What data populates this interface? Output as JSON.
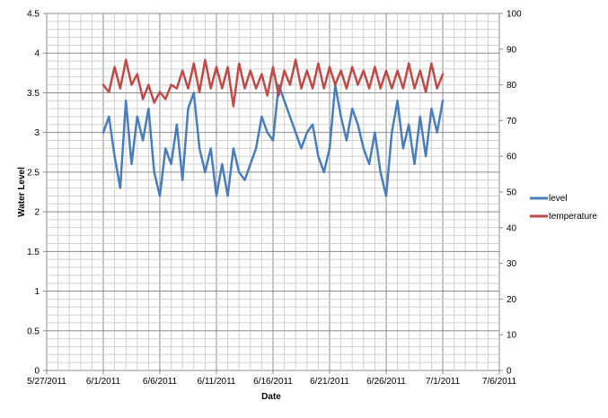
{
  "chart_data": {
    "type": "line",
    "title": "",
    "xlabel": "Date",
    "ylabel": "Water Level",
    "y2label": "",
    "x_range": [
      "5/27/2011",
      "7/6/2011"
    ],
    "x_tick_labels": [
      "5/27/2011",
      "6/1/2011",
      "6/6/2011",
      "6/11/2011",
      "6/16/2011",
      "6/21/2011",
      "6/26/2011",
      "7/1/2011",
      "7/6/2011"
    ],
    "y_range": [
      0,
      4.5
    ],
    "y_tick_labels": [
      "0",
      "0.5",
      "1",
      "1.5",
      "2",
      "2.5",
      "3",
      "3.5",
      "4",
      "4.5"
    ],
    "y2_range": [
      0,
      100
    ],
    "y2_tick_labels": [
      "0",
      "10",
      "20",
      "30",
      "40",
      "50",
      "60",
      "70",
      "80",
      "90",
      "100"
    ],
    "grid": true,
    "legend_position": "right",
    "series": [
      {
        "name": "level",
        "axis": "left",
        "color": "#4a7ebb",
        "x": [
          "6/1/2011",
          "6/1/2011 12:00",
          "6/2/2011",
          "6/2/2011 12:00",
          "6/3/2011",
          "6/3/2011 12:00",
          "6/4/2011",
          "6/4/2011 12:00",
          "6/5/2011",
          "6/5/2011 12:00",
          "6/6/2011",
          "6/6/2011 12:00",
          "6/7/2011",
          "6/7/2011 12:00",
          "6/8/2011",
          "6/8/2011 12:00",
          "6/9/2011",
          "6/9/2011 12:00",
          "6/10/2011",
          "6/10/2011 12:00",
          "6/11/2011",
          "6/11/2011 12:00",
          "6/12/2011",
          "6/12/2011 12:00",
          "6/13/2011",
          "6/13/2011 12:00",
          "6/14/2011",
          "6/14/2011 12:00",
          "6/15/2011",
          "6/15/2011 12:00",
          "6/16/2011",
          "6/16/2011 12:00",
          "6/17/2011",
          "6/17/2011 12:00",
          "6/18/2011",
          "6/18/2011 12:00",
          "6/19/2011",
          "6/19/2011 12:00",
          "6/20/2011",
          "6/20/2011 12:00",
          "6/21/2011",
          "6/21/2011 12:00",
          "6/22/2011",
          "6/22/2011 12:00",
          "6/23/2011",
          "6/23/2011 12:00",
          "6/24/2011",
          "6/24/2011 12:00",
          "6/25/2011",
          "6/25/2011 12:00",
          "6/26/2011",
          "6/26/2011 12:00",
          "6/27/2011",
          "6/27/2011 12:00",
          "6/28/2011",
          "6/28/2011 12:00",
          "6/29/2011",
          "6/29/2011 12:00",
          "6/30/2011",
          "6/30/2011 12:00",
          "7/1/2011"
        ],
        "y": [
          3.0,
          3.2,
          2.7,
          2.3,
          3.4,
          2.6,
          3.2,
          2.9,
          3.3,
          2.5,
          2.2,
          2.8,
          2.6,
          3.1,
          2.4,
          3.3,
          3.5,
          2.8,
          2.5,
          2.8,
          2.2,
          2.6,
          2.2,
          2.8,
          2.5,
          2.4,
          2.6,
          2.8,
          3.2,
          3.0,
          2.9,
          3.6,
          3.4,
          3.2,
          3.0,
          2.8,
          3.0,
          3.1,
          2.7,
          2.5,
          2.8,
          3.6,
          3.2,
          2.9,
          3.3,
          3.1,
          2.8,
          2.6,
          3.0,
          2.5,
          2.2,
          3.0,
          3.4,
          2.8,
          3.1,
          2.6,
          3.2,
          2.7,
          3.3,
          3.0,
          3.4
        ]
      },
      {
        "name": "temperature",
        "axis": "right",
        "color": "#be4b48",
        "x": [
          "6/1/2011",
          "6/1/2011 12:00",
          "6/2/2011",
          "6/2/2011 12:00",
          "6/3/2011",
          "6/3/2011 12:00",
          "6/4/2011",
          "6/4/2011 12:00",
          "6/5/2011",
          "6/5/2011 12:00",
          "6/6/2011",
          "6/6/2011 12:00",
          "6/7/2011",
          "6/7/2011 12:00",
          "6/8/2011",
          "6/8/2011 12:00",
          "6/9/2011",
          "6/9/2011 12:00",
          "6/10/2011",
          "6/10/2011 12:00",
          "6/11/2011",
          "6/11/2011 12:00",
          "6/12/2011",
          "6/12/2011 12:00",
          "6/13/2011",
          "6/13/2011 12:00",
          "6/14/2011",
          "6/14/2011 12:00",
          "6/15/2011",
          "6/15/2011 12:00",
          "6/16/2011",
          "6/16/2011 12:00",
          "6/17/2011",
          "6/17/2011 12:00",
          "6/18/2011",
          "6/18/2011 12:00",
          "6/19/2011",
          "6/19/2011 12:00",
          "6/20/2011",
          "6/20/2011 12:00",
          "6/21/2011",
          "6/21/2011 12:00",
          "6/22/2011",
          "6/22/2011 12:00",
          "6/23/2011",
          "6/23/2011 12:00",
          "6/24/2011",
          "6/24/2011 12:00",
          "6/25/2011",
          "6/25/2011 12:00",
          "6/26/2011",
          "6/26/2011 12:00",
          "6/27/2011",
          "6/27/2011 12:00",
          "6/28/2011",
          "6/28/2011 12:00",
          "6/29/2011",
          "6/29/2011 12:00",
          "6/30/2011",
          "6/30/2011 12:00",
          "7/1/2011"
        ],
        "y": [
          80,
          78,
          85,
          79,
          87,
          80,
          83,
          76,
          80,
          75,
          78,
          76,
          80,
          79,
          84,
          79,
          86,
          78,
          87,
          79,
          85,
          79,
          85,
          74,
          86,
          79,
          84,
          79,
          83,
          77,
          85,
          77,
          84,
          80,
          87,
          79,
          84,
          79,
          86,
          79,
          85,
          80,
          84,
          79,
          85,
          80,
          84,
          79,
          85,
          79,
          84,
          79,
          84,
          79,
          86,
          79,
          84,
          78,
          86,
          79,
          83
        ]
      }
    ]
  }
}
